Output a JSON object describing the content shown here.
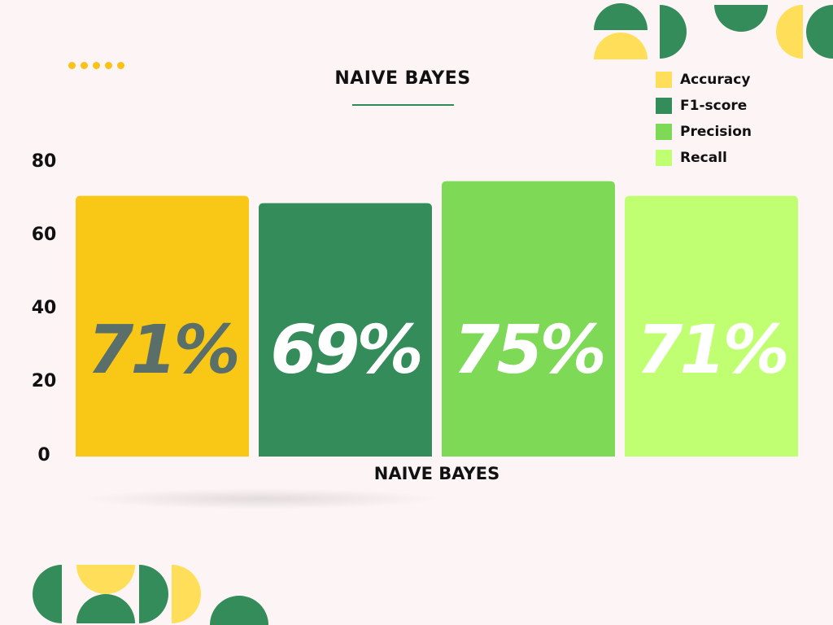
{
  "chart_data": {
    "type": "bar",
    "title": "NAIVE BAYES",
    "xlabel": "NAIVE BAYES",
    "ylabel": "",
    "ylim": [
      0,
      80
    ],
    "yticks": [
      "0",
      "20",
      "40",
      "60",
      "80"
    ],
    "categories": [
      "Accuracy",
      "F1-score",
      "Precision",
      "Recall"
    ],
    "values": [
      71,
      69,
      75,
      71
    ],
    "data_labels": [
      "71%",
      "69%",
      "75%",
      "71%"
    ],
    "colors": [
      "#F9C816",
      "#348C5A",
      "#7ED957",
      "#C1FF72"
    ],
    "label_colors": [
      "#5A6E6A",
      "#FFFFFF",
      "#FFFFFF",
      "#FFFFFF"
    ],
    "legend": [
      {
        "label": "Accuracy",
        "color": "#FFDE59"
      },
      {
        "label": "F1-score",
        "color": "#348C5A"
      },
      {
        "label": "Precision",
        "color": "#7ED957"
      },
      {
        "label": "Recall",
        "color": "#C1FF72"
      }
    ],
    "legend_position": "top-right",
    "grid": false
  },
  "decor": {
    "green": "#348C5A",
    "yellow": "#FFDE59",
    "dot_color": "#F7C31A"
  }
}
